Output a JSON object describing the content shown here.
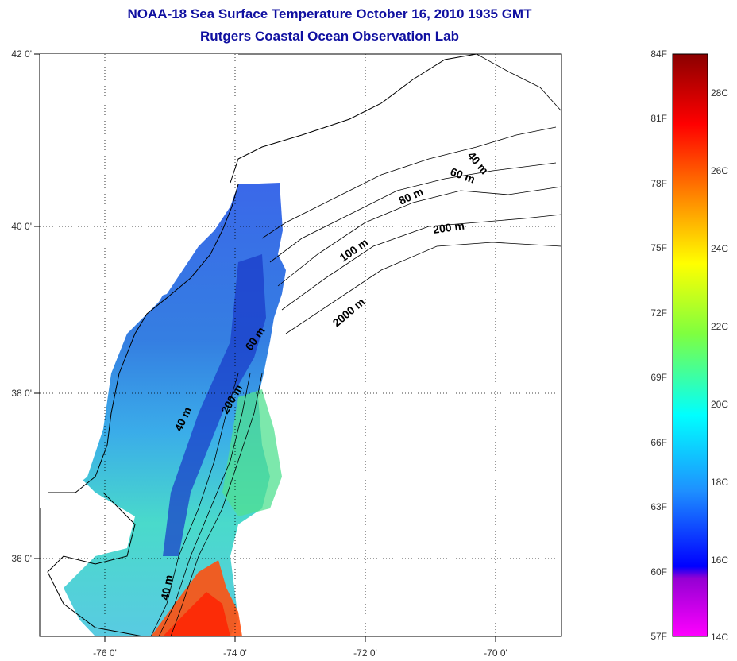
{
  "header": {
    "title": "NOAA-18 Sea Surface Temperature October 16, 2010 1935 GMT",
    "subtitle": "Rutgers Coastal Ocean Observation Lab"
  },
  "map": {
    "lat_ticks": [
      "42 0'",
      "40 0'",
      "38 0'",
      "36 0'"
    ],
    "lon_ticks": [
      "-76 0'",
      "-74 0'",
      "-72 0'",
      "-70 0'"
    ],
    "grid": "dotted",
    "isobaths": [
      "40 m",
      "60 m",
      "80 m",
      "100 m",
      "200 m",
      "2000 m",
      "60 m",
      "40 m",
      "200 m",
      "40 m"
    ]
  },
  "colorbar": {
    "fahrenheit_labels": [
      "84F",
      "81F",
      "78F",
      "75F",
      "72F",
      "69F",
      "66F",
      "63F",
      "60F",
      "57F"
    ],
    "celsius_labels": [
      "28C",
      "26C",
      "24C",
      "22C",
      "20C",
      "18C",
      "16C",
      "14C"
    ],
    "colors": [
      "#8b0000",
      "#ff0000",
      "#ff8c00",
      "#ffff00",
      "#7fff3f",
      "#00ffff",
      "#1e90ff",
      "#0000ff",
      "#9400d3",
      "#ff00ff"
    ]
  }
}
